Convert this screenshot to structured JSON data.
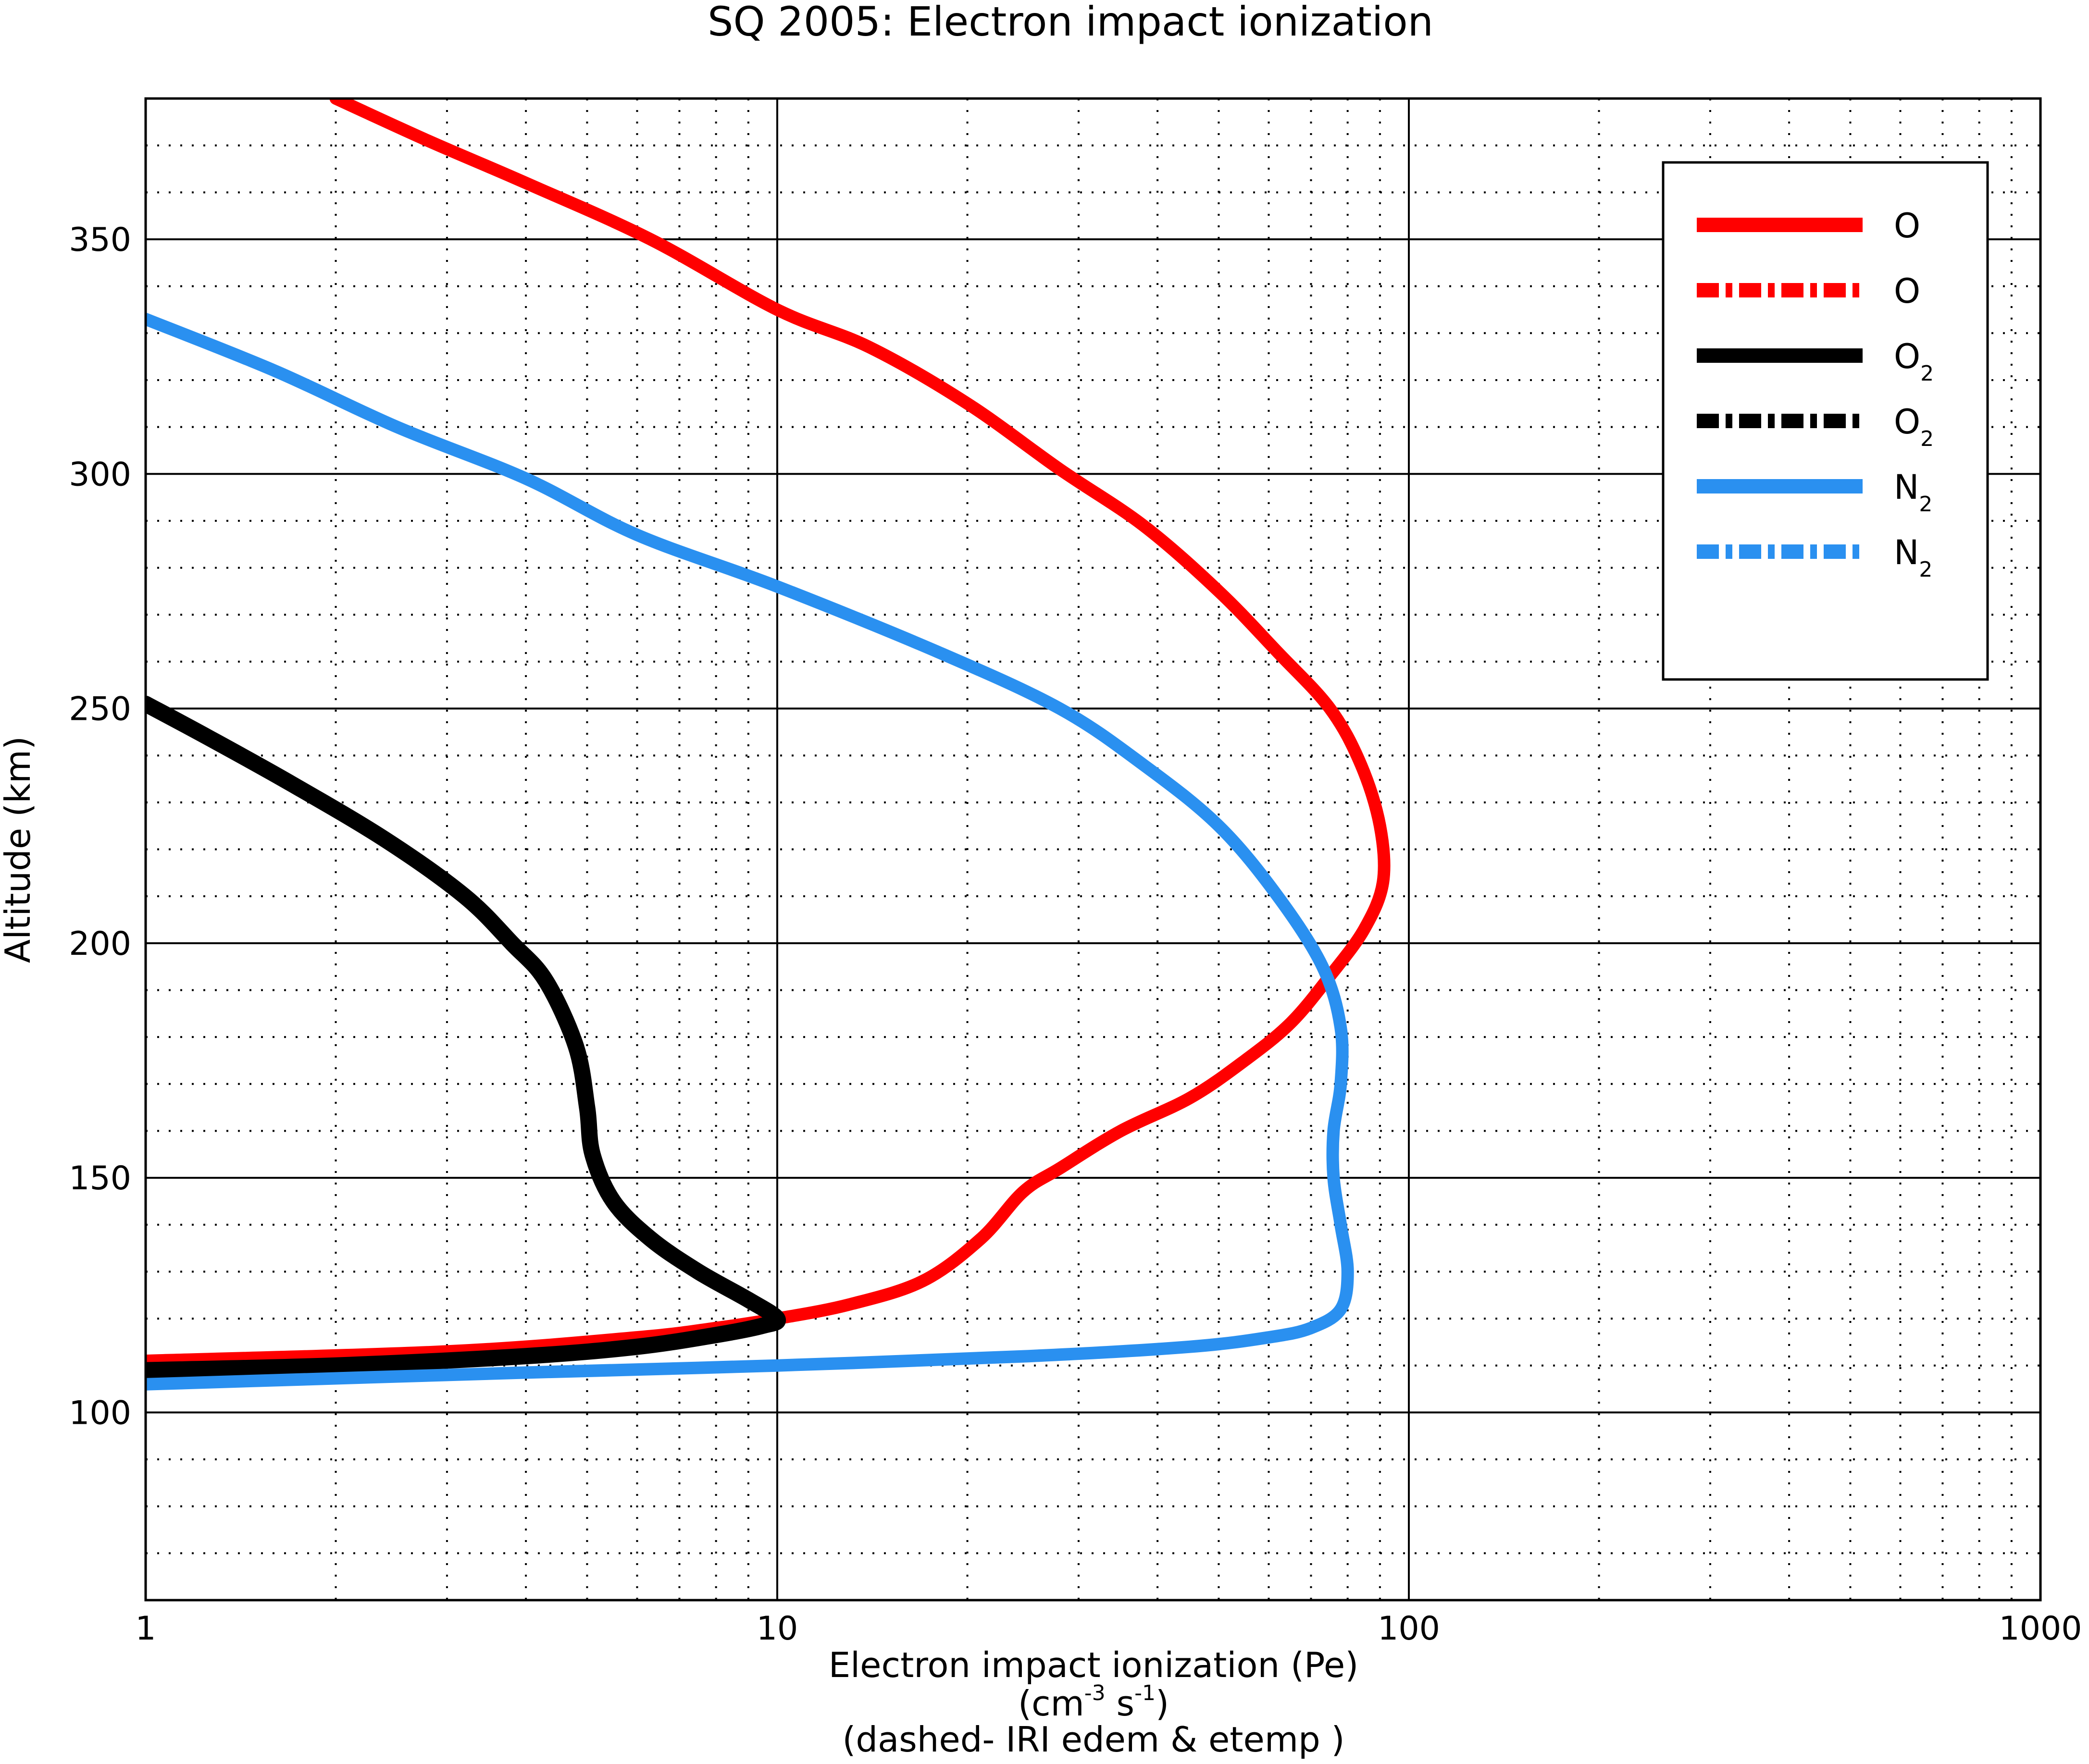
{
  "chart_data": {
    "type": "line",
    "title": "SQ 2005: Electron impact ionization",
    "xlabel": {
      "line1": "Electron impact ionization (Pe)",
      "line2_prefix": "(cm",
      "line2_sup1": "-3",
      "line2_mid": " s",
      "line2_sup2": "-1",
      "line2_suffix": ")",
      "line3": "(dashed- IRI edem & etemp )"
    },
    "ylabel": "Altitude (km)",
    "xscale": "log",
    "xlim": [
      1,
      1000
    ],
    "ylim": [
      60,
      380
    ],
    "grid": "on (major solid, minor dotted)",
    "legend_position": "top-right",
    "x_ticks": [
      {
        "value": 1,
        "label": "1"
      },
      {
        "value": 10,
        "label": "10"
      },
      {
        "value": 100,
        "label": "100"
      },
      {
        "value": 1000,
        "label": "1000"
      }
    ],
    "y_ticks": [
      {
        "value": 100,
        "label": "100"
      },
      {
        "value": 150,
        "label": "150"
      },
      {
        "value": 200,
        "label": "200"
      },
      {
        "value": 250,
        "label": "250"
      },
      {
        "value": 300,
        "label": "300"
      },
      {
        "value": 350,
        "label": "350"
      }
    ],
    "series": [
      {
        "name": "O",
        "color": "#ff0000",
        "style": "solid",
        "points": [
          [
            1.0,
            111
          ],
          [
            3.0,
            113
          ],
          [
            6.0,
            116
          ],
          [
            8.0,
            118
          ],
          [
            10.0,
            120
          ],
          [
            13.0,
            123
          ],
          [
            17.0,
            128
          ],
          [
            21.0,
            137
          ],
          [
            24.5,
            147
          ],
          [
            28,
            152
          ],
          [
            35,
            160
          ],
          [
            45,
            167
          ],
          [
            55,
            175
          ],
          [
            65,
            183
          ],
          [
            75,
            193
          ],
          [
            85,
            203
          ],
          [
            91,
            213
          ],
          [
            90,
            225
          ],
          [
            84,
            238
          ],
          [
            75,
            250
          ],
          [
            62,
            262
          ],
          [
            50,
            275
          ],
          [
            38,
            289
          ],
          [
            28,
            301
          ],
          [
            20,
            315
          ],
          [
            14,
            327
          ],
          [
            10,
            335
          ],
          [
            6.3,
            350
          ],
          [
            4.0,
            362
          ],
          [
            2.8,
            371
          ],
          [
            2.0,
            380
          ]
        ]
      },
      {
        "name": "O",
        "color": "#ff0000",
        "style": "dashdot",
        "points": []
      },
      {
        "name": "O2",
        "color": "#000000",
        "style": "solid",
        "points": [
          [
            1.0,
            109
          ],
          [
            2.0,
            110
          ],
          [
            4.0,
            112
          ],
          [
            6.0,
            114
          ],
          [
            8.0,
            116.5
          ],
          [
            9.5,
            118.5
          ],
          [
            10.0,
            120
          ],
          [
            9.0,
            124
          ],
          [
            7.5,
            130
          ],
          [
            6.3,
            137
          ],
          [
            5.5,
            145
          ],
          [
            5.1,
            155
          ],
          [
            5.0,
            165
          ],
          [
            4.8,
            178
          ],
          [
            4.3,
            192
          ],
          [
            3.8,
            200
          ],
          [
            3.2,
            210
          ],
          [
            2.4,
            222
          ],
          [
            1.7,
            234
          ],
          [
            1.25,
            244
          ],
          [
            1.0,
            251
          ]
        ]
      },
      {
        "name": "O2",
        "color": "#000000",
        "style": "dashdot",
        "points": []
      },
      {
        "name": "N2",
        "color": "#2a90f0",
        "style": "solid",
        "points": [
          [
            1.0,
            106
          ],
          [
            4.0,
            108.5
          ],
          [
            10.0,
            110
          ],
          [
            25.0,
            112
          ],
          [
            45.0,
            114
          ],
          [
            60.0,
            116
          ],
          [
            70.0,
            118
          ],
          [
            78,
            122
          ],
          [
            80,
            130
          ],
          [
            78,
            140
          ],
          [
            76,
            150
          ],
          [
            76,
            160
          ],
          [
            78,
            170
          ],
          [
            78,
            182
          ],
          [
            73,
            195
          ],
          [
            62,
            210
          ],
          [
            50,
            225
          ],
          [
            38,
            238
          ],
          [
            28,
            250
          ],
          [
            18,
            262
          ],
          [
            10.0,
            276
          ],
          [
            6.0,
            287
          ],
          [
            4.0,
            299
          ],
          [
            2.5,
            310
          ],
          [
            1.6,
            322
          ],
          [
            1.0,
            333
          ]
        ]
      },
      {
        "name": "N2",
        "color": "#2a90f0",
        "style": "dashdot",
        "points": []
      }
    ],
    "legend": [
      {
        "label": "O",
        "sub": "",
        "color": "#ff0000",
        "style": "solid"
      },
      {
        "label": "O",
        "sub": "",
        "color": "#ff0000",
        "style": "dashdot"
      },
      {
        "label": "O",
        "sub": "2",
        "color": "#000000",
        "style": "solid"
      },
      {
        "label": "O",
        "sub": "2",
        "color": "#000000",
        "style": "dashdot"
      },
      {
        "label": "N",
        "sub": "2",
        "color": "#2a90f0",
        "style": "solid"
      },
      {
        "label": "N",
        "sub": "2",
        "color": "#2a90f0",
        "style": "dashdot"
      }
    ]
  }
}
